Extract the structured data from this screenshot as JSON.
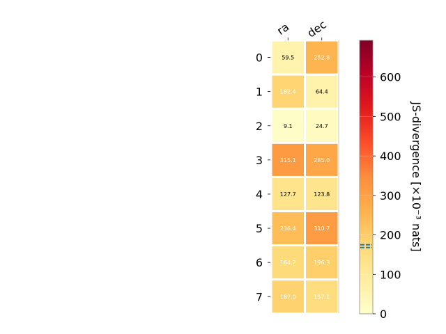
{
  "chart_data": {
    "type": "heatmap",
    "columns": [
      "ra",
      "dec"
    ],
    "rows": [
      "0",
      "1",
      "2",
      "3",
      "4",
      "5",
      "6",
      "7"
    ],
    "values": [
      [
        59.5,
        252.8
      ],
      [
        182.4,
        64.4
      ],
      [
        9.1,
        24.7
      ],
      [
        315.1,
        285.0
      ],
      [
        127.7,
        123.8
      ],
      [
        236.4,
        310.7
      ],
      [
        164.2,
        196.3
      ],
      [
        187.0,
        157.1
      ]
    ],
    "value_labels": [
      [
        "59.5",
        "252.8"
      ],
      [
        "182.4",
        "64.4"
      ],
      [
        "9.1",
        "24.7"
      ],
      [
        "315.1",
        "285.0"
      ],
      [
        "127.7",
        "123.8"
      ],
      [
        "236.4",
        "310.7"
      ],
      [
        "164.2",
        "196.3"
      ],
      [
        "187.0",
        "157.1"
      ]
    ],
    "colorbar": {
      "label": "JS-divergence [×10⁻³ nats]",
      "range": [
        0,
        693
      ],
      "ticks": [
        "0",
        "100",
        "200",
        "300",
        "400",
        "500",
        "600"
      ],
      "tick_values": [
        0,
        100,
        200,
        300,
        400,
        500,
        600
      ],
      "marker_values": [
        168,
        175
      ],
      "marker_color": "#1f77b4",
      "colormap": "YlOrRd"
    }
  }
}
